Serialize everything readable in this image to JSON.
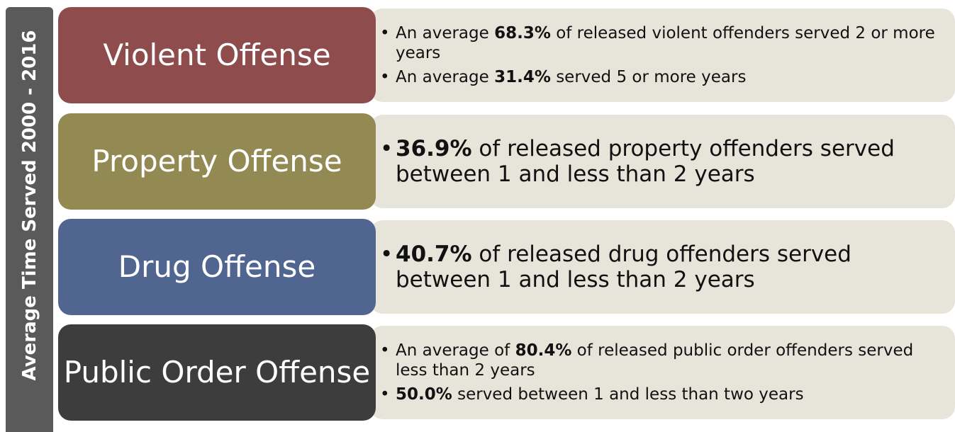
{
  "side_label": "Average Time Served 2000 - 2016",
  "rows": [
    {
      "label": "Violent Offense",
      "color": "#8e4c4d",
      "bullets": [
        {
          "pre": "An average ",
          "em": "68.3%",
          "post": " of released violent offenders served 2 or more years"
        },
        {
          "pre": "An average ",
          "em": "31.4%",
          "post": " served 5 or more years"
        }
      ]
    },
    {
      "label": "Property Offense",
      "color": "#938953",
      "bullets": [
        {
          "em": "36.9%",
          "post": " of released property offenders served between 1 and less than 2 years"
        }
      ]
    },
    {
      "label": "Drug Offense",
      "color": "#506691",
      "bullets": [
        {
          "em": "40.7%",
          "post": " of released drug offenders served between 1 and less than 2 years"
        }
      ]
    },
    {
      "label": "Public Order Offense",
      "color": "#3d3d3d",
      "bullets": [
        {
          "pre": "An average of ",
          "em": "80.4%",
          "post": " of released public order offenders served less than 2 years"
        },
        {
          "em": "50.0%",
          "post": " served between 1 and less than two years"
        }
      ]
    }
  ]
}
